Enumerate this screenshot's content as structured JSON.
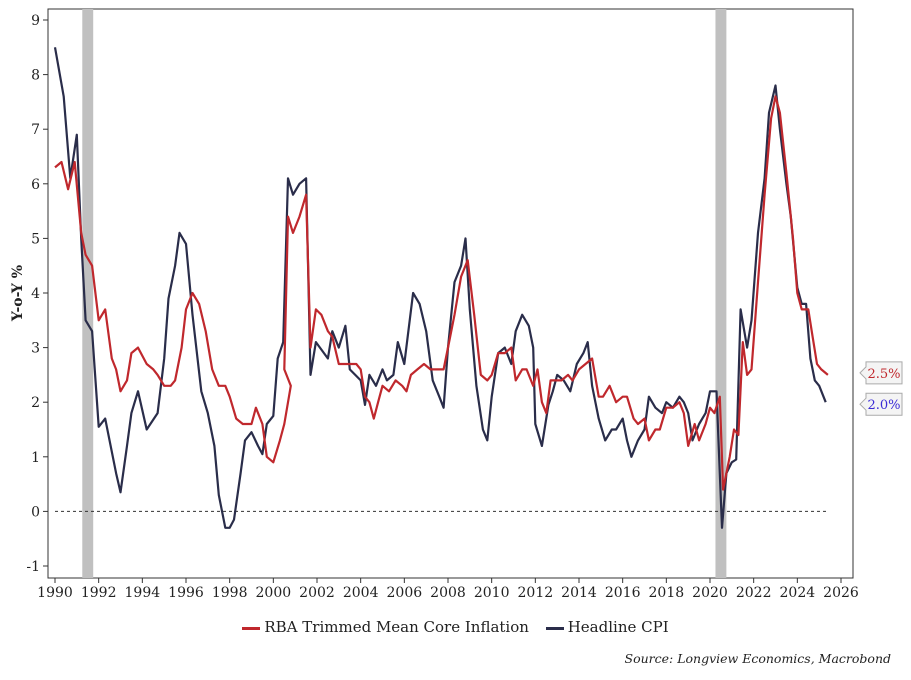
{
  "chart_data": {
    "type": "line",
    "ylabel": "Y-o-Y %",
    "ylim": [
      -1,
      9
    ],
    "xlim": [
      1990,
      2026
    ],
    "yticks": [
      "-1",
      "0",
      "1",
      "2",
      "3",
      "4",
      "5",
      "6",
      "7",
      "8",
      "9"
    ],
    "xticks": [
      "1990",
      "1992",
      "1994",
      "1996",
      "1998",
      "2000",
      "2002",
      "2004",
      "2006",
      "2008",
      "2010",
      "2012",
      "2014",
      "2016",
      "2018",
      "2020",
      "2022",
      "2024",
      "2026"
    ],
    "zero_line": 0,
    "recessions": [
      [
        1991.25,
        1991.75
      ],
      [
        2020.25,
        2020.75
      ]
    ],
    "series": [
      {
        "name": "RBA Trimmed Mean Core Inflation",
        "color": "#c0282d",
        "end_label": "2.5%",
        "points": [
          [
            1990.0,
            6.3
          ],
          [
            1990.3,
            6.4
          ],
          [
            1990.6,
            5.9
          ],
          [
            1990.9,
            6.4
          ],
          [
            1991.2,
            5.1
          ],
          [
            1991.4,
            4.7
          ],
          [
            1991.7,
            4.5
          ],
          [
            1992.0,
            3.5
          ],
          [
            1992.3,
            3.7
          ],
          [
            1992.6,
            2.8
          ],
          [
            1992.8,
            2.6
          ],
          [
            1993.0,
            2.2
          ],
          [
            1993.3,
            2.4
          ],
          [
            1993.5,
            2.9
          ],
          [
            1993.8,
            3.0
          ],
          [
            1994.2,
            2.7
          ],
          [
            1994.5,
            2.6
          ],
          [
            1994.7,
            2.5
          ],
          [
            1995.0,
            2.3
          ],
          [
            1995.3,
            2.3
          ],
          [
            1995.5,
            2.4
          ],
          [
            1995.8,
            3.0
          ],
          [
            1996.0,
            3.7
          ],
          [
            1996.3,
            4.0
          ],
          [
            1996.6,
            3.8
          ],
          [
            1996.9,
            3.3
          ],
          [
            1997.2,
            2.6
          ],
          [
            1997.5,
            2.3
          ],
          [
            1997.8,
            2.3
          ],
          [
            1998.0,
            2.1
          ],
          [
            1998.3,
            1.7
          ],
          [
            1998.6,
            1.6
          ],
          [
            1999.0,
            1.6
          ],
          [
            1999.2,
            1.9
          ],
          [
            1999.5,
            1.6
          ],
          [
            1999.7,
            1.0
          ],
          [
            2000.0,
            0.9
          ],
          [
            2000.3,
            1.3
          ],
          [
            2000.5,
            1.6
          ],
          [
            2000.8,
            2.3
          ],
          [
            2000.5,
            2.6
          ],
          [
            2000.67,
            5.4
          ],
          [
            2000.9,
            5.1
          ],
          [
            2001.2,
            5.4
          ],
          [
            2001.5,
            5.8
          ],
          [
            2001.7,
            3.0
          ],
          [
            2001.95,
            3.7
          ],
          [
            2002.2,
            3.6
          ],
          [
            2002.5,
            3.3
          ],
          [
            2002.7,
            3.2
          ],
          [
            2003.0,
            2.7
          ],
          [
            2003.5,
            2.7
          ],
          [
            2003.8,
            2.7
          ],
          [
            2004.0,
            2.6
          ],
          [
            2004.2,
            2.1
          ],
          [
            2004.4,
            2.0
          ],
          [
            2004.6,
            1.7
          ],
          [
            2004.8,
            2.0
          ],
          [
            2005.0,
            2.3
          ],
          [
            2005.3,
            2.2
          ],
          [
            2005.6,
            2.4
          ],
          [
            2005.9,
            2.3
          ],
          [
            2006.1,
            2.2
          ],
          [
            2006.3,
            2.5
          ],
          [
            2006.6,
            2.6
          ],
          [
            2006.9,
            2.7
          ],
          [
            2007.2,
            2.6
          ],
          [
            2007.5,
            2.6
          ],
          [
            2007.8,
            2.6
          ],
          [
            2008.0,
            3.0
          ],
          [
            2008.3,
            3.6
          ],
          [
            2008.6,
            4.3
          ],
          [
            2008.9,
            4.6
          ],
          [
            2009.2,
            3.6
          ],
          [
            2009.5,
            2.5
          ],
          [
            2009.8,
            2.4
          ],
          [
            2010.0,
            2.5
          ],
          [
            2010.3,
            2.9
          ],
          [
            2010.6,
            2.9
          ],
          [
            2010.9,
            3.0
          ],
          [
            2011.1,
            2.4
          ],
          [
            2011.4,
            2.6
          ],
          [
            2011.6,
            2.6
          ],
          [
            2011.9,
            2.3
          ],
          [
            2012.1,
            2.6
          ],
          [
            2012.3,
            2.0
          ],
          [
            2012.5,
            1.8
          ],
          [
            2012.7,
            2.4
          ],
          [
            2013.0,
            2.4
          ],
          [
            2013.2,
            2.4
          ],
          [
            2013.5,
            2.5
          ],
          [
            2013.7,
            2.4
          ],
          [
            2014.0,
            2.6
          ],
          [
            2014.3,
            2.7
          ],
          [
            2014.6,
            2.8
          ],
          [
            2014.9,
            2.1
          ],
          [
            2015.1,
            2.1
          ],
          [
            2015.4,
            2.3
          ],
          [
            2015.7,
            2.0
          ],
          [
            2016.0,
            2.1
          ],
          [
            2016.2,
            2.1
          ],
          [
            2016.5,
            1.7
          ],
          [
            2016.7,
            1.6
          ],
          [
            2017.0,
            1.7
          ],
          [
            2017.2,
            1.3
          ],
          [
            2017.5,
            1.5
          ],
          [
            2017.7,
            1.5
          ],
          [
            2018.0,
            1.9
          ],
          [
            2018.3,
            1.9
          ],
          [
            2018.6,
            2.0
          ],
          [
            2018.8,
            1.8
          ],
          [
            2019.0,
            1.2
          ],
          [
            2019.3,
            1.6
          ],
          [
            2019.5,
            1.3
          ],
          [
            2019.8,
            1.6
          ],
          [
            2020.0,
            1.9
          ],
          [
            2020.2,
            1.8
          ],
          [
            2020.45,
            2.1
          ],
          [
            2020.6,
            0.4
          ],
          [
            2020.9,
            1.0
          ],
          [
            2021.1,
            1.5
          ],
          [
            2021.3,
            1.4
          ],
          [
            2021.5,
            3.1
          ],
          [
            2021.7,
            2.5
          ],
          [
            2021.9,
            2.6
          ],
          [
            2022.2,
            4.2
          ],
          [
            2022.5,
            5.8
          ],
          [
            2022.8,
            7.2
          ],
          [
            2023.0,
            7.6
          ],
          [
            2023.2,
            7.3
          ],
          [
            2023.5,
            6.2
          ],
          [
            2023.8,
            5.0
          ],
          [
            2024.0,
            4.0
          ],
          [
            2024.2,
            3.7
          ],
          [
            2024.5,
            3.7
          ],
          [
            2024.7,
            3.2
          ],
          [
            2024.9,
            2.7
          ],
          [
            2025.1,
            2.6
          ],
          [
            2025.4,
            2.5
          ]
        ]
      },
      {
        "name": "Headline CPI",
        "color": "#2a2d4a",
        "end_label": "2.0%",
        "label_color": "#3a2bd6",
        "points": [
          [
            1990.0,
            8.5
          ],
          [
            1990.4,
            7.6
          ],
          [
            1990.7,
            6.1
          ],
          [
            1991.0,
            6.9
          ],
          [
            1991.2,
            5.0
          ],
          [
            1991.4,
            3.5
          ],
          [
            1991.7,
            3.3
          ],
          [
            1992.0,
            1.55
          ],
          [
            1992.3,
            1.7
          ],
          [
            1992.8,
            0.7
          ],
          [
            1993.0,
            0.35
          ],
          [
            1993.3,
            1.2
          ],
          [
            1993.5,
            1.8
          ],
          [
            1993.8,
            2.2
          ],
          [
            1994.2,
            1.5
          ],
          [
            1994.7,
            1.8
          ],
          [
            1995.0,
            2.8
          ],
          [
            1995.2,
            3.9
          ],
          [
            1995.5,
            4.5
          ],
          [
            1995.7,
            5.1
          ],
          [
            1996.0,
            4.9
          ],
          [
            1996.3,
            3.6
          ],
          [
            1996.7,
            2.2
          ],
          [
            1997.0,
            1.8
          ],
          [
            1997.3,
            1.2
          ],
          [
            1997.5,
            0.3
          ],
          [
            1997.8,
            -0.3
          ],
          [
            1998.0,
            -0.3
          ],
          [
            1998.2,
            -0.15
          ],
          [
            1998.5,
            0.7
          ],
          [
            1998.7,
            1.3
          ],
          [
            1999.0,
            1.45
          ],
          [
            1999.3,
            1.2
          ],
          [
            1999.5,
            1.05
          ],
          [
            1999.7,
            1.6
          ],
          [
            2000.0,
            1.75
          ],
          [
            2000.2,
            2.8
          ],
          [
            2000.45,
            3.1
          ],
          [
            2000.67,
            6.1
          ],
          [
            2000.9,
            5.8
          ],
          [
            2001.2,
            6.0
          ],
          [
            2001.5,
            6.1
          ],
          [
            2001.7,
            2.5
          ],
          [
            2001.95,
            3.1
          ],
          [
            2002.5,
            2.8
          ],
          [
            2002.7,
            3.3
          ],
          [
            2003.0,
            3.0
          ],
          [
            2003.3,
            3.4
          ],
          [
            2003.5,
            2.6
          ],
          [
            2004.0,
            2.4
          ],
          [
            2004.2,
            1.95
          ],
          [
            2004.4,
            2.5
          ],
          [
            2004.7,
            2.3
          ],
          [
            2005.0,
            2.6
          ],
          [
            2005.2,
            2.4
          ],
          [
            2005.5,
            2.5
          ],
          [
            2005.7,
            3.1
          ],
          [
            2006.0,
            2.7
          ],
          [
            2006.4,
            4.0
          ],
          [
            2006.7,
            3.8
          ],
          [
            2007.0,
            3.3
          ],
          [
            2007.3,
            2.4
          ],
          [
            2007.6,
            2.1
          ],
          [
            2007.8,
            1.9
          ],
          [
            2008.0,
            3.0
          ],
          [
            2008.3,
            4.2
          ],
          [
            2008.6,
            4.5
          ],
          [
            2008.8,
            5.0
          ],
          [
            2009.0,
            3.7
          ],
          [
            2009.3,
            2.3
          ],
          [
            2009.6,
            1.5
          ],
          [
            2009.8,
            1.3
          ],
          [
            2010.0,
            2.1
          ],
          [
            2010.3,
            2.9
          ],
          [
            2010.6,
            3.0
          ],
          [
            2010.9,
            2.7
          ],
          [
            2011.1,
            3.3
          ],
          [
            2011.4,
            3.6
          ],
          [
            2011.7,
            3.4
          ],
          [
            2011.9,
            3.0
          ],
          [
            2012.0,
            1.6
          ],
          [
            2012.3,
            1.2
          ],
          [
            2012.6,
            1.95
          ],
          [
            2012.8,
            2.2
          ],
          [
            2013.0,
            2.5
          ],
          [
            2013.3,
            2.4
          ],
          [
            2013.6,
            2.2
          ],
          [
            2013.9,
            2.7
          ],
          [
            2014.2,
            2.9
          ],
          [
            2014.4,
            3.1
          ],
          [
            2014.6,
            2.3
          ],
          [
            2014.9,
            1.7
          ],
          [
            2015.2,
            1.3
          ],
          [
            2015.5,
            1.5
          ],
          [
            2015.7,
            1.5
          ],
          [
            2016.0,
            1.7
          ],
          [
            2016.2,
            1.3
          ],
          [
            2016.4,
            1.0
          ],
          [
            2016.7,
            1.3
          ],
          [
            2017.0,
            1.5
          ],
          [
            2017.2,
            2.1
          ],
          [
            2017.5,
            1.9
          ],
          [
            2017.8,
            1.8
          ],
          [
            2018.0,
            2.0
          ],
          [
            2018.3,
            1.9
          ],
          [
            2018.6,
            2.1
          ],
          [
            2018.8,
            2.0
          ],
          [
            2019.0,
            1.8
          ],
          [
            2019.2,
            1.3
          ],
          [
            2019.5,
            1.6
          ],
          [
            2019.8,
            1.8
          ],
          [
            2020.0,
            2.2
          ],
          [
            2020.3,
            2.2
          ],
          [
            2020.55,
            -0.3
          ],
          [
            2020.75,
            0.7
          ],
          [
            2021.0,
            0.9
          ],
          [
            2021.2,
            0.95
          ],
          [
            2021.4,
            3.7
          ],
          [
            2021.7,
            3.0
          ],
          [
            2021.9,
            3.5
          ],
          [
            2022.2,
            5.1
          ],
          [
            2022.5,
            6.1
          ],
          [
            2022.7,
            7.3
          ],
          [
            2023.0,
            7.8
          ],
          [
            2023.2,
            7.0
          ],
          [
            2023.5,
            6.0
          ],
          [
            2023.7,
            5.4
          ],
          [
            2024.0,
            4.1
          ],
          [
            2024.2,
            3.8
          ],
          [
            2024.4,
            3.8
          ],
          [
            2024.6,
            2.8
          ],
          [
            2024.8,
            2.4
          ],
          [
            2025.0,
            2.3
          ],
          [
            2025.3,
            2.0
          ]
        ]
      }
    ],
    "legend_position": "bottom",
    "source": "Source: Longview Economics, Macrobond"
  }
}
